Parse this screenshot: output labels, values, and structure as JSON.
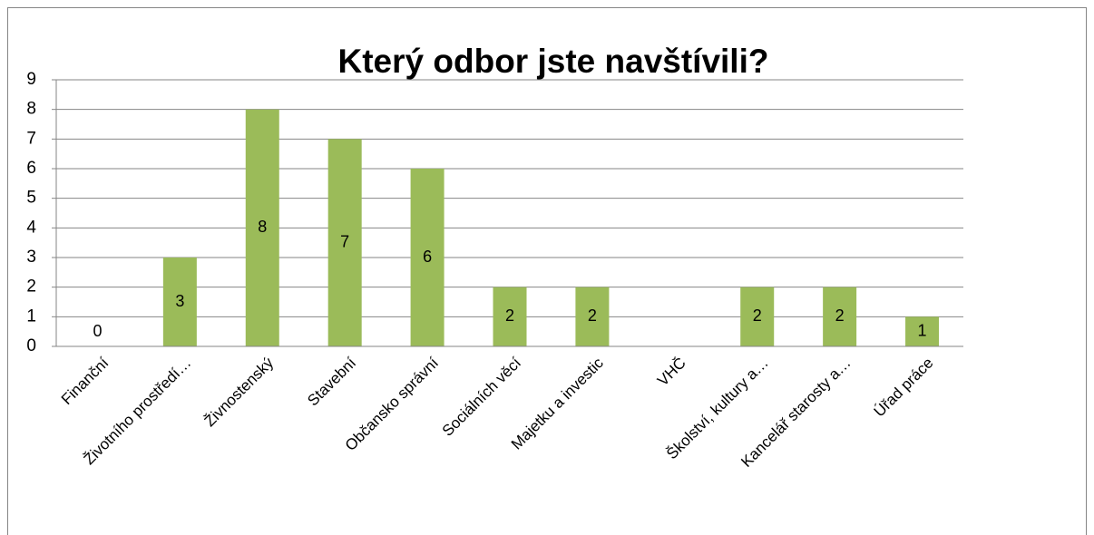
{
  "chart_data": {
    "type": "bar",
    "title": "Který odbor jste navštívili?",
    "categories": [
      "Finanční",
      "Životního prostředí…",
      "Živnostenský",
      "Stavební",
      "Občansko správní",
      "Sociálních věcí",
      "Majetku a investic",
      "VHČ",
      "Školství, kultury a…",
      "Kancelář starosty a…",
      "Úřad práce"
    ],
    "values": [
      0,
      3,
      8,
      7,
      6,
      2,
      2,
      null,
      2,
      2,
      1
    ],
    "color": "#9bbb59",
    "ylim": [
      0,
      9
    ],
    "yticks": [
      0,
      1,
      2,
      3,
      4,
      5,
      6,
      7,
      8,
      9
    ],
    "grid": true
  }
}
